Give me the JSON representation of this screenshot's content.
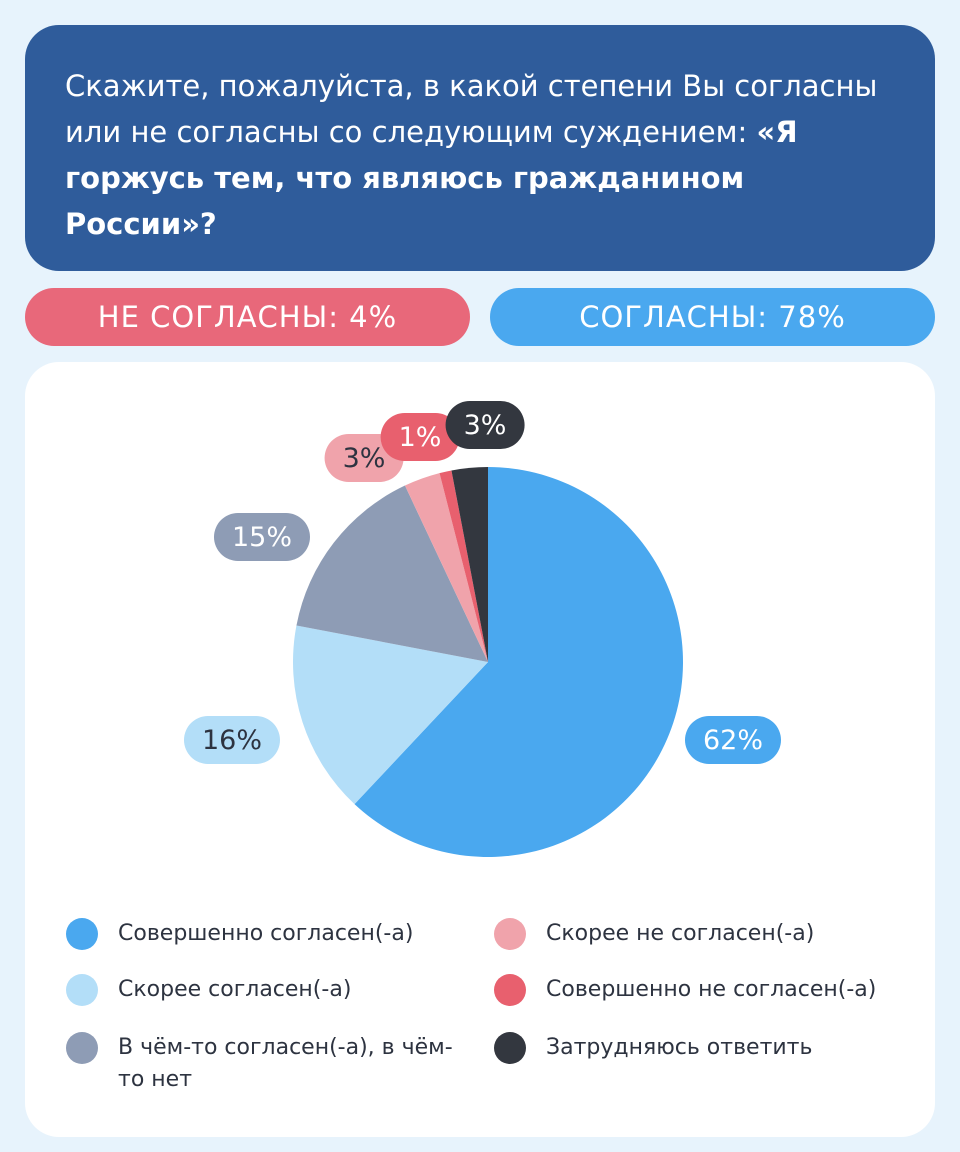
{
  "question": {
    "text": "Скажите, пожалуйста, в какой степени Вы согласны или не согласны со следующим суждением: ",
    "bold": "«Я горжусь тем, что являюсь гражданином России»?"
  },
  "summary": {
    "disagree": "НЕ СОГЛАСНЫ: 4%",
    "agree": "СОГЛАСНЫ: 78%"
  },
  "chart_data": {
    "type": "pie",
    "title": "Скажите, пожалуйста, в какой степени Вы согласны или не согласны со следующим суждением: «Я горжусь тем, что являюсь гражданином России»?",
    "categories": [
      "Совершенно согласен(-а)",
      "Скорее согласен(-а)",
      "В чём-то согласен(-а), в чём-то нет",
      "Скорее не согласен(-а)",
      "Совершенно не согласен(-а)",
      "Затрудняюсь ответить"
    ],
    "values": [
      62,
      16,
      15,
      3,
      1,
      3
    ],
    "labels": [
      "62%",
      "16%",
      "15%",
      "3%",
      "1%",
      "3%"
    ],
    "colors": [
      "#4aa8ef",
      "#b3def8",
      "#8e9cb5",
      "#f0a3ab",
      "#e8606e",
      "#33373f"
    ],
    "legend_position": "bottom"
  }
}
